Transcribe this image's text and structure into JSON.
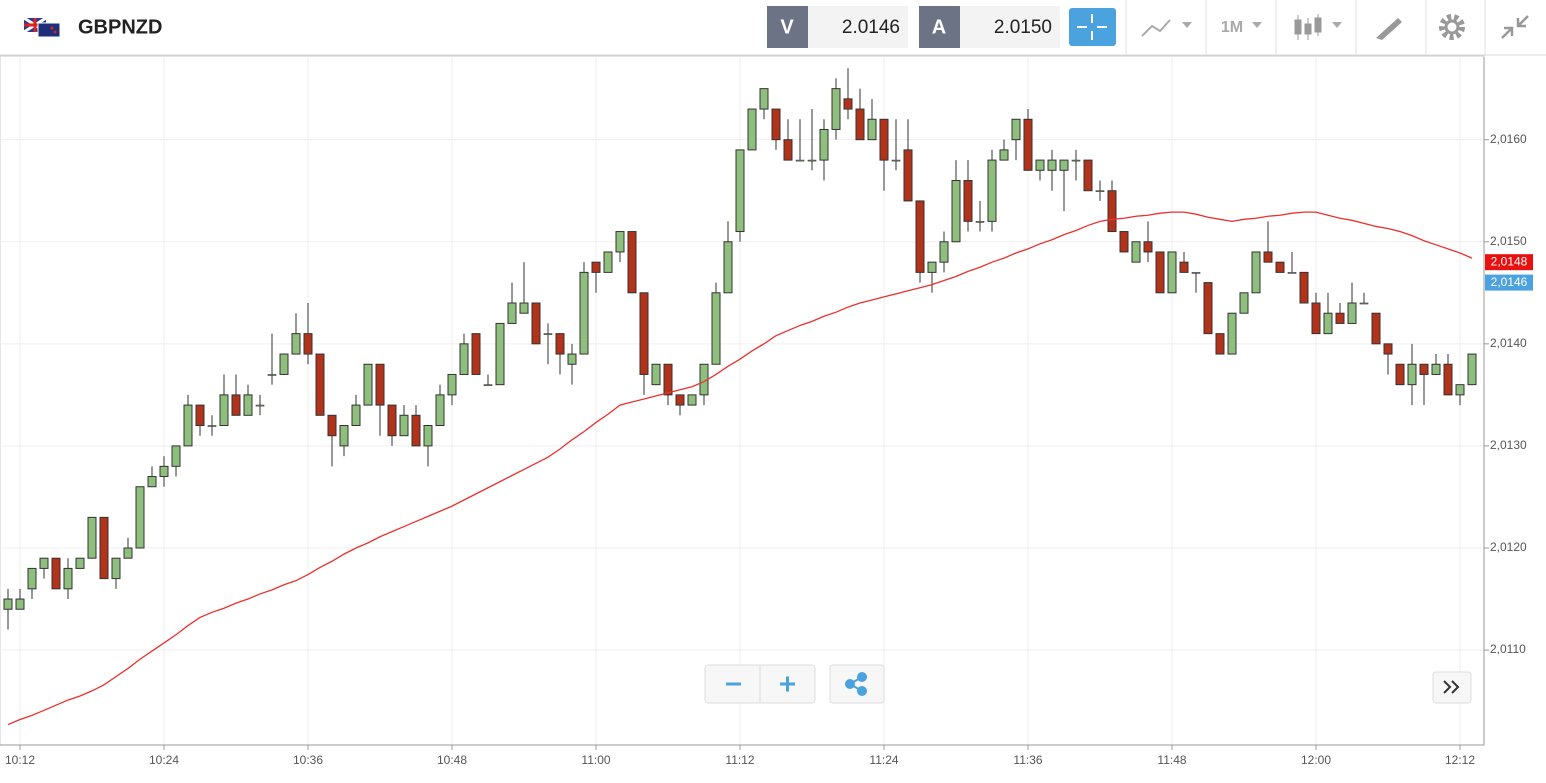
{
  "header": {
    "symbol": "GBPNZD",
    "bid_label": "V",
    "bid": "2.0146",
    "ask_label": "A",
    "ask": "2.0150",
    "interval": "1M"
  },
  "chart_data": {
    "type": "candlestick",
    "categories": [
      null,
      "10:12",
      null,
      null,
      null,
      null,
      null,
      null,
      null,
      null,
      null,
      null,
      null,
      "10:24",
      null,
      null,
      null,
      null,
      null,
      null,
      null,
      null,
      null,
      null,
      null,
      "10:36",
      null,
      null,
      null,
      null,
      null,
      null,
      null,
      null,
      null,
      null,
      null,
      "10:48",
      null,
      null,
      null,
      null,
      null,
      null,
      null,
      null,
      null,
      null,
      null,
      "11:00",
      null,
      null,
      null,
      null,
      null,
      null,
      null,
      null,
      null,
      null,
      null,
      "11:12",
      null,
      null,
      null,
      null,
      null,
      null,
      null,
      null,
      null,
      null,
      null,
      "11:24",
      null,
      null,
      null,
      null,
      null,
      null,
      null,
      null,
      null,
      null,
      null,
      "11:36",
      null,
      null,
      null,
      null,
      null,
      null,
      null,
      null,
      null,
      null,
      null,
      "11:48",
      null,
      null,
      null,
      null,
      null,
      null,
      null,
      null,
      null,
      null,
      null,
      "12:00",
      null,
      null,
      null,
      null,
      null,
      null,
      null,
      null,
      null,
      null,
      null,
      "12:12",
      null
    ],
    "open": [
      2.0114,
      2.0114,
      2.0116,
      2.0118,
      2.0119,
      2.0116,
      2.0118,
      2.0119,
      2.0123,
      2.0117,
      2.0119,
      2.012,
      2.0126,
      2.0127,
      2.0128,
      2.013,
      2.0134,
      2.0132,
      2.0132,
      2.0135,
      2.0133,
      2.0134,
      2.0137,
      2.0137,
      2.0139,
      2.0141,
      2.0139,
      2.0133,
      2.013,
      2.0132,
      2.0134,
      2.0138,
      2.0134,
      2.0131,
      2.0133,
      2.013,
      2.0132,
      2.0135,
      2.0137,
      2.0141,
      2.0136,
      2.0136,
      2.0142,
      2.0143,
      2.0144,
      2.0141,
      2.0141,
      2.0138,
      2.0139,
      2.0148,
      2.0147,
      2.0149,
      2.0151,
      2.0145,
      2.0136,
      2.0138,
      2.0135,
      2.0134,
      2.0135,
      2.0138,
      2.0145,
      2.0151,
      2.0159,
      2.0163,
      2.0163,
      2.016,
      2.0158,
      2.0158,
      2.0158,
      2.0161,
      2.0164,
      2.0163,
      2.016,
      2.0162,
      2.0158,
      2.0159,
      2.0154,
      2.0147,
      2.0148,
      2.015,
      2.0156,
      2.0152,
      2.0152,
      2.0158,
      2.016,
      2.0162,
      2.0157,
      2.0157,
      2.0157,
      2.0158,
      2.0158,
      2.0155,
      2.0155,
      2.0151,
      2.0148,
      2.015,
      2.0149,
      2.0145,
      2.0148,
      2.0147,
      2.0146,
      2.0141,
      2.0139,
      2.0143,
      2.0145,
      2.0149,
      2.0148,
      2.0147,
      2.0147,
      2.0144,
      2.0141,
      2.0143,
      2.0142,
      2.0144,
      2.0143,
      2.014,
      2.0138,
      2.0136,
      2.0138,
      2.0137,
      2.0138,
      2.0135,
      2.0136
    ],
    "high": [
      2.0116,
      2.0116,
      2.0118,
      2.0119,
      2.0119,
      2.0119,
      2.0119,
      2.0123,
      2.0123,
      2.0119,
      2.0121,
      2.0126,
      2.0128,
      2.0129,
      2.013,
      2.0135,
      2.0134,
      2.0133,
      2.0137,
      2.0137,
      2.0136,
      2.0135,
      2.0141,
      2.0139,
      2.0143,
      2.0144,
      2.0139,
      2.0133,
      2.0132,
      2.0135,
      2.0138,
      2.0138,
      2.0134,
      2.0134,
      2.0134,
      2.0132,
      2.0136,
      2.0137,
      2.0141,
      2.0141,
      2.0137,
      2.0142,
      2.0146,
      2.0148,
      2.0144,
      2.0142,
      2.0141,
      2.014,
      2.0148,
      2.0148,
      2.0149,
      2.0151,
      2.0151,
      2.0145,
      2.0138,
      2.0138,
      2.0135,
      2.0135,
      2.0138,
      2.0146,
      2.0152,
      2.0159,
      2.0163,
      2.0165,
      2.0163,
      2.0162,
      2.0162,
      2.0163,
      2.0162,
      2.0166,
      2.0167,
      2.0165,
      2.0164,
      2.0162,
      2.0162,
      2.0162,
      2.0154,
      2.0148,
      2.0151,
      2.0158,
      2.0158,
      2.0154,
      2.0159,
      2.016,
      2.0162,
      2.0163,
      2.0158,
      2.0159,
      2.0158,
      2.0159,
      2.0158,
      2.0156,
      2.0156,
      2.0151,
      2.015,
      2.0152,
      2.0149,
      2.0149,
      2.0149,
      2.0147,
      2.0146,
      2.0141,
      2.0143,
      2.0145,
      2.0149,
      2.0152,
      2.0148,
      2.0149,
      2.0147,
      2.0145,
      2.0145,
      2.0144,
      2.0146,
      2.0145,
      2.0143,
      2.014,
      2.0138,
      2.014,
      2.0138,
      2.0139,
      2.0139,
      2.0136,
      2.0139
    ],
    "low": [
      2.0112,
      2.0114,
      2.0115,
      2.0117,
      2.0116,
      2.0115,
      2.0118,
      2.0119,
      2.0117,
      2.0116,
      2.0119,
      2.012,
      2.0126,
      2.0126,
      2.0127,
      2.013,
      2.0131,
      2.0131,
      2.0132,
      2.0133,
      2.0133,
      2.0133,
      2.0136,
      2.0137,
      2.0139,
      2.0138,
      2.0133,
      2.0128,
      2.0129,
      2.0132,
      2.0134,
      2.0131,
      2.013,
      2.0131,
      2.013,
      2.0128,
      2.0132,
      2.0134,
      2.0137,
      2.0137,
      2.0136,
      2.0136,
      2.0142,
      2.0143,
      2.014,
      2.0138,
      2.0137,
      2.0136,
      2.0139,
      2.0145,
      2.0147,
      2.0148,
      2.0145,
      2.0135,
      2.0136,
      2.0134,
      2.0133,
      2.0134,
      2.0134,
      2.0138,
      2.0145,
      2.015,
      2.0159,
      2.0162,
      2.0159,
      2.0158,
      2.0158,
      2.0157,
      2.0156,
      2.016,
      2.0162,
      2.016,
      2.016,
      2.0155,
      2.0157,
      2.0154,
      2.0146,
      2.0145,
      2.0147,
      2.015,
      2.0151,
      2.0151,
      2.0151,
      2.0158,
      2.0158,
      2.0157,
      2.0156,
      2.0155,
      2.0153,
      2.0156,
      2.0155,
      2.0154,
      2.0151,
      2.0149,
      2.0148,
      2.0148,
      2.0145,
      2.0145,
      2.0147,
      2.0145,
      2.0141,
      2.0139,
      2.0139,
      2.0143,
      2.0145,
      2.0148,
      2.0147,
      2.0147,
      2.0144,
      2.0141,
      2.0141,
      2.0142,
      2.0142,
      2.0144,
      2.014,
      2.0137,
      2.0136,
      2.0134,
      2.0134,
      2.0137,
      2.0135,
      2.0134,
      2.0136
    ],
    "close": [
      2.0115,
      2.0115,
      2.0118,
      2.0119,
      2.0116,
      2.0118,
      2.0119,
      2.0123,
      2.0117,
      2.0119,
      2.012,
      2.0126,
      2.0127,
      2.0128,
      2.013,
      2.0134,
      2.0132,
      2.0132,
      2.0135,
      2.0133,
      2.0135,
      2.0134,
      2.0137,
      2.0139,
      2.0141,
      2.0139,
      2.0133,
      2.0131,
      2.0132,
      2.0134,
      2.0138,
      2.0134,
      2.0131,
      2.0133,
      2.013,
      2.0132,
      2.0135,
      2.0137,
      2.014,
      2.0137,
      2.0136,
      2.0142,
      2.0144,
      2.0144,
      2.014,
      2.0141,
      2.0139,
      2.0139,
      2.0147,
      2.0147,
      2.0149,
      2.0151,
      2.0145,
      2.0137,
      2.0138,
      2.0135,
      2.0134,
      2.0135,
      2.0138,
      2.0145,
      2.015,
      2.0159,
      2.0163,
      2.0165,
      2.016,
      2.0158,
      2.0158,
      2.0158,
      2.0161,
      2.0165,
      2.0163,
      2.016,
      2.0162,
      2.0158,
      2.0158,
      2.0154,
      2.0147,
      2.0148,
      2.015,
      2.0156,
      2.0152,
      2.0152,
      2.0158,
      2.0159,
      2.0162,
      2.0157,
      2.0158,
      2.0158,
      2.0158,
      2.0158,
      2.0155,
      2.0155,
      2.0151,
      2.0149,
      2.015,
      2.0149,
      2.0145,
      2.0149,
      2.0147,
      2.0147,
      2.0141,
      2.0139,
      2.0143,
      2.0145,
      2.0149,
      2.0148,
      2.0147,
      2.0147,
      2.0144,
      2.0141,
      2.0143,
      2.0142,
      2.0144,
      2.0144,
      2.014,
      2.0139,
      2.0136,
      2.0138,
      2.0137,
      2.0138,
      2.0135,
      2.0136,
      2.0139
    ],
    "up_color": "#8fbf7c",
    "down_color": "#b3321a",
    "ma": {
      "color": "#e8322e",
      "values": [
        2.01027,
        2.01032,
        2.01036,
        2.01041,
        2.01046,
        2.01051,
        2.01055,
        2.0106,
        2.01066,
        2.01074,
        2.01082,
        2.01091,
        2.01099,
        2.01107,
        2.01115,
        2.01124,
        2.01132,
        2.01137,
        2.01141,
        2.01146,
        2.0115,
        2.01155,
        2.01159,
        2.01164,
        2.01168,
        2.01174,
        2.01181,
        2.01187,
        2.01194,
        2.012,
        2.01205,
        2.01211,
        2.01216,
        2.01221,
        2.01226,
        2.01231,
        2.01236,
        2.01241,
        2.01247,
        2.01253,
        2.01259,
        2.01265,
        2.01271,
        2.01277,
        2.01283,
        2.01289,
        2.01297,
        2.01306,
        2.01314,
        2.01323,
        2.01331,
        2.0134,
        2.01343,
        2.01346,
        2.01349,
        2.01352,
        2.01355,
        2.01358,
        2.01363,
        2.0137,
        2.01378,
        2.01385,
        2.01393,
        2.014,
        2.01408,
        2.01413,
        2.01418,
        2.01422,
        2.01427,
        2.01431,
        2.01436,
        2.0144,
        2.01443,
        2.01446,
        2.01449,
        2.01452,
        2.01455,
        2.01458,
        2.01462,
        2.01466,
        2.01471,
        2.01475,
        2.0148,
        2.01484,
        2.01489,
        2.01493,
        2.01498,
        2.01502,
        2.01507,
        2.01511,
        2.01516,
        2.0152,
        2.01522,
        2.01523,
        2.01525,
        2.01526,
        2.01528,
        2.01529,
        2.01529,
        2.01527,
        2.01524,
        2.01522,
        2.0152,
        2.01522,
        2.01523,
        2.01525,
        2.01526,
        2.01528,
        2.01529,
        2.01529,
        2.01526,
        2.01523,
        2.01521,
        2.01518,
        2.01515,
        2.01513,
        2.0151,
        2.01506,
        2.01501,
        2.01497,
        2.01493,
        2.01489,
        2.01484
      ]
    },
    "ylim": [
      2.01007,
      2.01681
    ],
    "yticks": [
      {
        "value": 2.011,
        "label": "2,0110"
      },
      {
        "value": 2.012,
        "label": "2,0120"
      },
      {
        "value": 2.013,
        "label": "2,0130"
      },
      {
        "value": 2.014,
        "label": "2,0140"
      },
      {
        "value": 2.015,
        "label": "2,0150"
      },
      {
        "value": 2.016,
        "label": "2,0160"
      }
    ],
    "grid": true,
    "price_tags": [
      {
        "value": 2.0148,
        "label": "2,0148",
        "color": "#e8110f"
      },
      {
        "value": 2.0146,
        "label": "2,0146",
        "color": "#4aa3df"
      }
    ]
  }
}
